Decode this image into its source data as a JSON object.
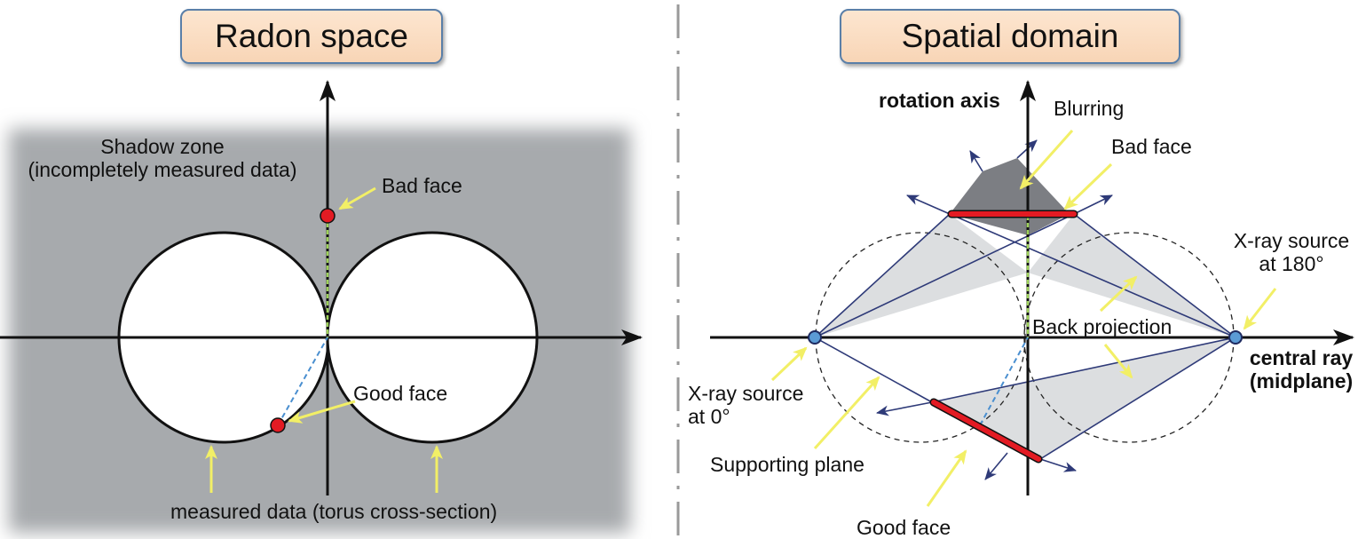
{
  "left_panel": {
    "title": "Radon space",
    "shadow_zone_line1": "Shadow zone",
    "shadow_zone_line2": "(incompletely measured data)",
    "bad_face": "Bad face",
    "good_face": "Good face",
    "measured_data": "measured data (torus cross-section)"
  },
  "right_panel": {
    "title": "Spatial domain",
    "rotation_axis": "rotation axis",
    "blurring": "Blurring",
    "bad_face": "Bad face",
    "xray_180_line1": "X-ray source",
    "xray_180_line2": "at 180°",
    "back_projection": "Back projection",
    "central_ray_line1": "central ray",
    "central_ray_line2": "(midplane)",
    "xray_0_line1": "X-ray source",
    "xray_0_line2": "at 0°",
    "supporting_plane": "Supporting plane",
    "good_face": "Good face"
  },
  "colors": {
    "shadow": "#a7aaad",
    "face_red": "#e31b23",
    "arrow_yellow": "#f2ef66",
    "dashed_blue": "#4a8fd0",
    "dashed_green": "#9ed25a",
    "source_blue": "#5b9bd5",
    "projection_gray": "#d6d8db",
    "blur_dark": "#6e7075",
    "line_navy": "#2e3a78"
  }
}
